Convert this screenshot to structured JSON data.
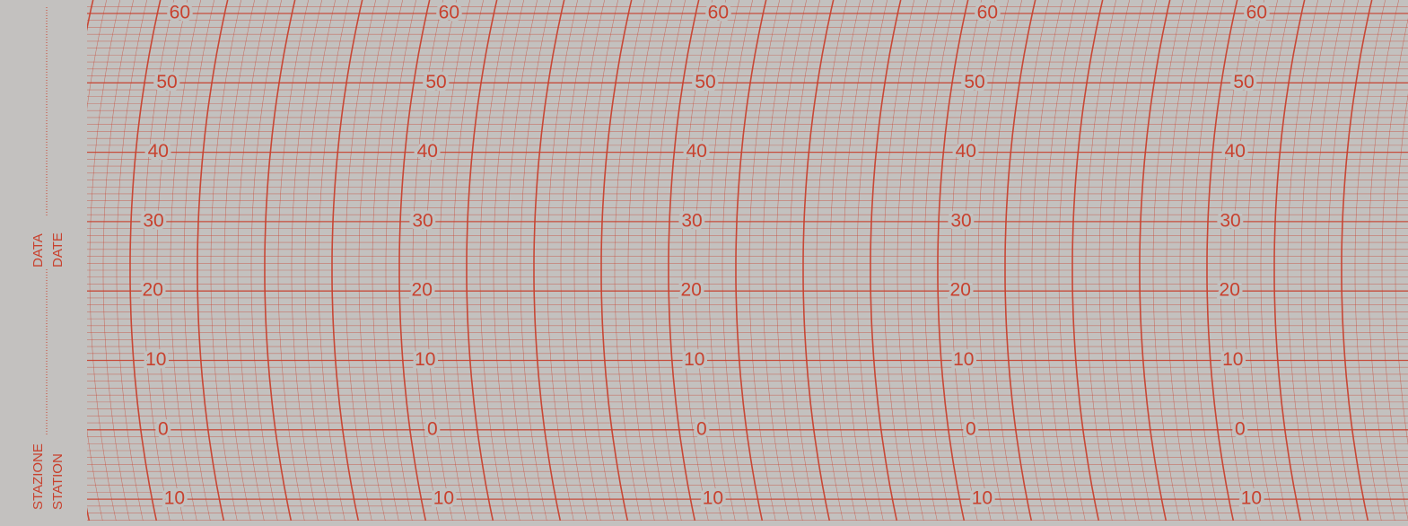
{
  "margin": {
    "station_it": "STAZIONE",
    "station_en": "STATION",
    "date_it": "DATA",
    "date_en": "DATE"
  },
  "scale": {
    "labels": [
      "60",
      "50",
      "40",
      "30",
      "20",
      "10",
      "0",
      "10"
    ]
  }
}
